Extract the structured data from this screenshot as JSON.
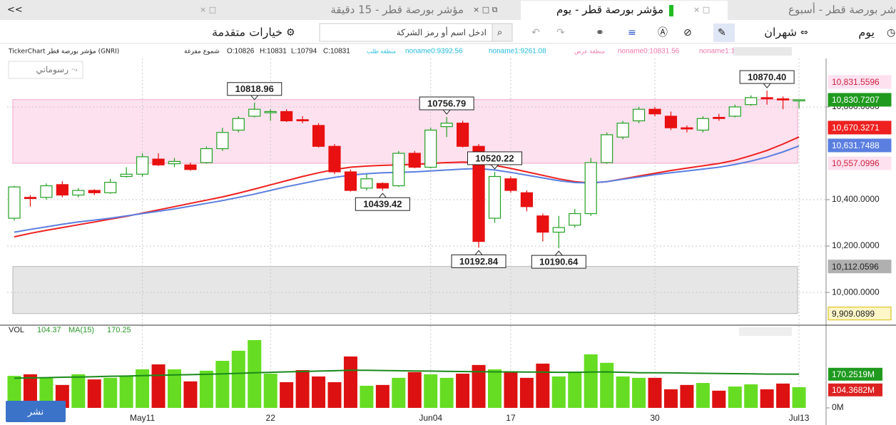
{
  "chart_data": {
    "type": "candlestick",
    "categories": [
      null,
      null,
      null,
      null,
      null,
      null,
      null,
      null,
      "May11",
      null,
      null,
      null,
      null,
      null,
      null,
      null,
      "22",
      null,
      null,
      null,
      null,
      null,
      null,
      null,
      null,
      null,
      "Jun04",
      null,
      null,
      null,
      null,
      "17",
      null,
      null,
      null,
      null,
      null,
      null,
      null,
      null,
      "30",
      null,
      null,
      null,
      null,
      null,
      null,
      null,
      null,
      "Jul13"
    ],
    "open": [
      10320,
      10410,
      10410,
      10465,
      10420,
      10440,
      10430,
      10500,
      10510,
      10575,
      10555,
      10550,
      10560,
      10620,
      10700,
      10760,
      10775,
      10780,
      10745,
      10720,
      10630,
      10520,
      10450,
      10470,
      10460,
      10600,
      10540,
      10715,
      10730,
      10630,
      10320,
      10490,
      10430,
      10330,
      10260,
      10290,
      10340,
      10560,
      10670,
      10740,
      10790,
      10760,
      10710,
      10700,
      10755,
      10760,
      10810,
      10840,
      10835,
      10826
    ],
    "high": [
      10460,
      10420,
      10470,
      10480,
      10450,
      10445,
      10490,
      10540,
      10600,
      10600,
      10580,
      10560,
      10630,
      10710,
      10760,
      10818.96,
      10790,
      10790,
      10760,
      10730,
      10640,
      10530,
      10510,
      10475,
      10610,
      10610,
      10710,
      10756.79,
      10740,
      10640,
      10520.22,
      10500,
      10440,
      10340,
      10330,
      10360,
      10580,
      10690,
      10740,
      10800,
      10800,
      10780,
      10720,
      10760,
      10770,
      10810,
      10850,
      10870.4,
      10845,
      10831
    ],
    "low": [
      10310,
      10370,
      10400,
      10410,
      10410,
      10420,
      10425,
      10495,
      10500,
      10545,
      10540,
      10525,
      10555,
      10610,
      10690,
      10755,
      10740,
      10735,
      10730,
      10625,
      10510,
      10435,
      10440,
      10439.42,
      10455,
      10535,
      10535,
      10670,
      10625,
      10192.84,
      10300,
      10430,
      10350,
      10220,
      10190.64,
      10280,
      10330,
      10555,
      10660,
      10730,
      10760,
      10700,
      10690,
      10690,
      10740,
      10755,
      10805,
      10810,
      10790,
      10794
    ],
    "close": [
      10455,
      10405,
      10460,
      10420,
      10440,
      10430,
      10475,
      10510,
      10585,
      10550,
      10565,
      10530,
      10620,
      10690,
      10750,
      10790,
      10780,
      10740,
      10740,
      10630,
      10520,
      10440,
      10490,
      10450,
      10600,
      10540,
      10700,
      10730,
      10630,
      10220,
      10500,
      10440,
      10370,
      10260,
      10280,
      10340,
      10560,
      10680,
      10730,
      10790,
      10770,
      10710,
      10705,
      10750,
      10750,
      10800,
      10840,
      10835,
      10830,
      10831
    ],
    "up_color": "#22a022",
    "down_color": "#e81010",
    "ylim": [
      9862,
      10972
    ],
    "yticks": [
      {
        "value": 10000,
        "label": "10,000.0000"
      },
      {
        "value": 10200,
        "label": "10,200.0000"
      },
      {
        "value": 10400,
        "label": "10,400.0000"
      },
      {
        "value": 10800,
        "label": "10,800.0000"
      }
    ],
    "grid": true,
    "lines": [
      {
        "color": "#ee2020",
        "values": [
          10240,
          10255,
          10268,
          10280,
          10292,
          10304,
          10316,
          10328,
          10342,
          10356,
          10370,
          10384,
          10398,
          10412,
          10428,
          10446,
          10464,
          10482,
          10500,
          10516,
          10530,
          10540,
          10545,
          10548,
          10550,
          10552,
          10556,
          10560,
          10562,
          10560,
          10548,
          10535,
          10520,
          10505,
          10490,
          10478,
          10472,
          10478,
          10490,
          10502,
          10514,
          10526,
          10536,
          10546,
          10556,
          10570,
          10590,
          10612,
          10640,
          10670.3271
        ]
      },
      {
        "color": "#5b7fe0",
        "values": [
          10260,
          10272,
          10283,
          10294,
          10304,
          10312,
          10320,
          10330,
          10340,
          10350,
          10360,
          10372,
          10384,
          10396,
          10410,
          10424,
          10440,
          10456,
          10470,
          10484,
          10496,
          10506,
          10512,
          10516,
          10518,
          10520,
          10524,
          10528,
          10532,
          10534,
          10528,
          10518,
          10506,
          10494,
          10482,
          10474,
          10472,
          10478,
          10488,
          10498,
          10508,
          10516,
          10524,
          10532,
          10540,
          10552,
          10566,
          10584,
          10606,
          10631.7488
        ]
      }
    ],
    "zones": [
      {
        "name": "منطقة عرض",
        "top": 10831.5596,
        "bottom": 10557.0996,
        "color": "#fde1ef",
        "border": "#f2a6cb"
      },
      {
        "name": "منطقة طلب",
        "top": 10112.0596,
        "bottom": 9909.0899,
        "color": "#e6e6e6",
        "border": "#b8b8b8"
      }
    ],
    "price_labels": [
      {
        "value": 10831.5596,
        "label": "10,831.5596",
        "color": "#fde1ef",
        "text_color": "#d02040"
      },
      {
        "value": 10830.7207,
        "label": "10,830.7207",
        "color": "#1f9a1f",
        "text_color": "#ffffff"
      },
      {
        "value": 10670.3271,
        "label": "10,670.3271",
        "color": "#ee2020",
        "text_color": "#ffffff"
      },
      {
        "value": 10631.7488,
        "label": "10,631.7488",
        "color": "#5b7fe0",
        "text_color": "#ffffff"
      },
      {
        "value": 10557.0996,
        "label": "10,557.0996",
        "color": "#fde1ef",
        "text_color": "#d02040"
      },
      {
        "value": 10112.0596,
        "label": "10,112.0596",
        "color": "#b0b0b0",
        "text_color": "#222222"
      },
      {
        "value": 9909.0899,
        "label": "9,909.0899",
        "color": "#fff6c8",
        "text_color": "#222222"
      }
    ],
    "annotations": [
      {
        "value": 10818.96,
        "label": "10818.96"
      },
      {
        "value": 10439.42,
        "label": "10439.42"
      },
      {
        "value": 10756.79,
        "label": "10756.79"
      },
      {
        "value": 10520.22,
        "label": "10520.22"
      },
      {
        "value": 10192.84,
        "label": "10192.84"
      },
      {
        "value": 10190.64,
        "label": "10190.64"
      },
      {
        "value": 10870.4,
        "label": "10870.40"
      }
    ],
    "volume": {
      "header": [
        "VOL",
        "104.37",
        "MA(15)",
        "170.25"
      ],
      "values": [
        162,
        170,
        152,
        116,
        170,
        144,
        152,
        160,
        195,
        220,
        195,
        134,
        188,
        238,
        289,
        343,
        173,
        130,
        191,
        159,
        130,
        260,
        112,
        116,
        152,
        181,
        170,
        152,
        173,
        217,
        195,
        181,
        152,
        224,
        159,
        184,
        271,
        228,
        159,
        152,
        152,
        94,
        116,
        126,
        87,
        108,
        119,
        94,
        123,
        104.3682
      ],
      "ma": [
        150,
        152,
        153,
        155,
        156,
        158,
        160,
        161,
        163,
        165,
        167,
        168,
        170,
        172,
        175,
        178,
        180,
        182,
        184,
        186,
        188,
        190,
        190,
        189,
        188,
        187,
        186,
        185,
        184,
        183,
        182,
        182,
        181,
        181,
        180,
        180,
        181,
        182,
        180,
        178,
        178,
        177,
        176,
        175,
        174,
        173,
        172,
        171,
        171,
        170.2519
      ],
      "ma_color": "#1a8a1a",
      "up_color": "#66dd22",
      "down_color": "#dd1111",
      "ylim": [
        0,
        404
      ],
      "yticks": [
        {
          "value": 0,
          "label": "0M"
        }
      ],
      "labels": [
        {
          "value": 170.2519,
          "label": "170.2519M",
          "color": "#1f9a1f"
        },
        {
          "value": 104.3682,
          "label": "104.3682M",
          "color": "#dd2222"
        }
      ]
    }
  },
  "ui": {
    "tabs": [
      "<<",
      "مؤشر بورصة قطر - 15 دقيقة",
      "مؤشر بورصة قطر - يوم",
      "شر بورصة قطر - أسبوع"
    ],
    "toolbar": {
      "period": "يوم",
      "range": "شهران",
      "advanced": "خيارات متقدمة",
      "search": "ادخل اسم أو رمز الشركة"
    },
    "info": [
      "TickerChart مؤشر بورصة قطر (GNRI)",
      "شموع مفرغة",
      "O:10826",
      "H:10831",
      "L:10794",
      "C:10831"
    ],
    "legend": [
      "noname0:9392.56",
      "noname1:9261.08",
      "noname0:10831.56",
      "noname1:1"
    ],
    "drawings": "رسوماتي",
    "share": "نشر"
  }
}
